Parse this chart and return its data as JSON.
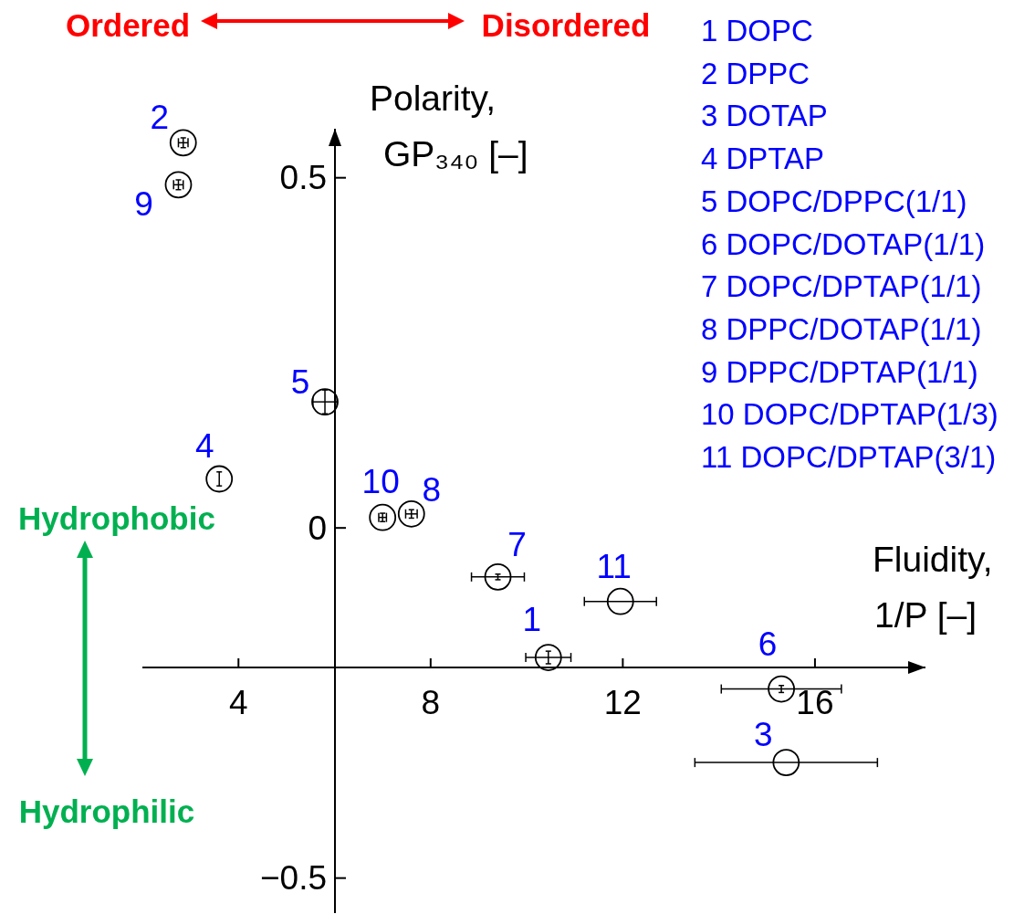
{
  "chart_data": {
    "type": "scatter",
    "xlabel": "Fluidity, 1/P [–]",
    "ylabel": "Polarity, GP₃₄₀ [–]",
    "x": [
      10.45,
      2.85,
      15.4,
      3.6,
      5.8,
      15.3,
      9.4,
      7.6,
      2.75,
      7.0,
      11.95
    ],
    "values": [
      -0.185,
      0.55,
      -0.335,
      0.07,
      0.18,
      -0.23,
      -0.07,
      0.02,
      0.49,
      0.015,
      -0.105
    ],
    "xerrors": [
      0.47,
      0.1,
      1.9,
      null,
      0.25,
      1.25,
      0.55,
      0.12,
      0.1,
      0.08,
      0.75
    ],
    "errors": [
      0.009,
      0.007,
      null,
      0.01,
      0.017,
      0.005,
      0.004,
      0.006,
      0.007,
      0.006,
      null
    ],
    "color": "#000000",
    "marker": "circle",
    "xlim": [
      2,
      18.3
    ],
    "ylim": [
      -0.55,
      0.57
    ],
    "xticks": [
      4,
      8,
      12,
      16
    ],
    "yticks": [
      {
        "value": -0.5,
        "label": "−0.5"
      },
      0,
      0.5
    ],
    "annotations": [
      "Ordered",
      "Disordered",
      "Hydrophobic",
      "Hydrophilic",
      "1 DOPC",
      "2 DPPC",
      "3 DOTAP",
      "4 DPTAP",
      "5 DOPC/DPPC(1/1)",
      "6 DOPC/DOTAP(1/1)",
      "7 DOPC/DPTAP(1/1)",
      "8 DPPC/DOTAP(1/1)",
      "9 DPPC/DPTAP(1/1)",
      "10 DOPC/DPTAP(1/3)",
      "11 DOPC/DPTAP(3/1)",
      {
        "text": "1",
        "x": 10.45,
        "y": -0.185
      },
      {
        "text": "2",
        "x": 2.85,
        "y": 0.55
      },
      {
        "text": "3",
        "x": 15.4,
        "y": -0.335
      },
      {
        "text": "4",
        "x": 3.6,
        "y": 0.07
      },
      {
        "text": "5",
        "x": 5.8,
        "y": 0.18
      },
      {
        "text": "6",
        "x": 15.3,
        "y": -0.23
      },
      {
        "text": "7",
        "x": 9.4,
        "y": -0.07
      },
      {
        "text": "8",
        "x": 7.6,
        "y": 0.02
      },
      {
        "text": "9",
        "x": 2.75,
        "y": 0.49
      },
      {
        "text": "10",
        "x": 7.0,
        "y": 0.015
      },
      {
        "text": "11",
        "x": 11.95,
        "y": -0.105
      }
    ]
  }
}
